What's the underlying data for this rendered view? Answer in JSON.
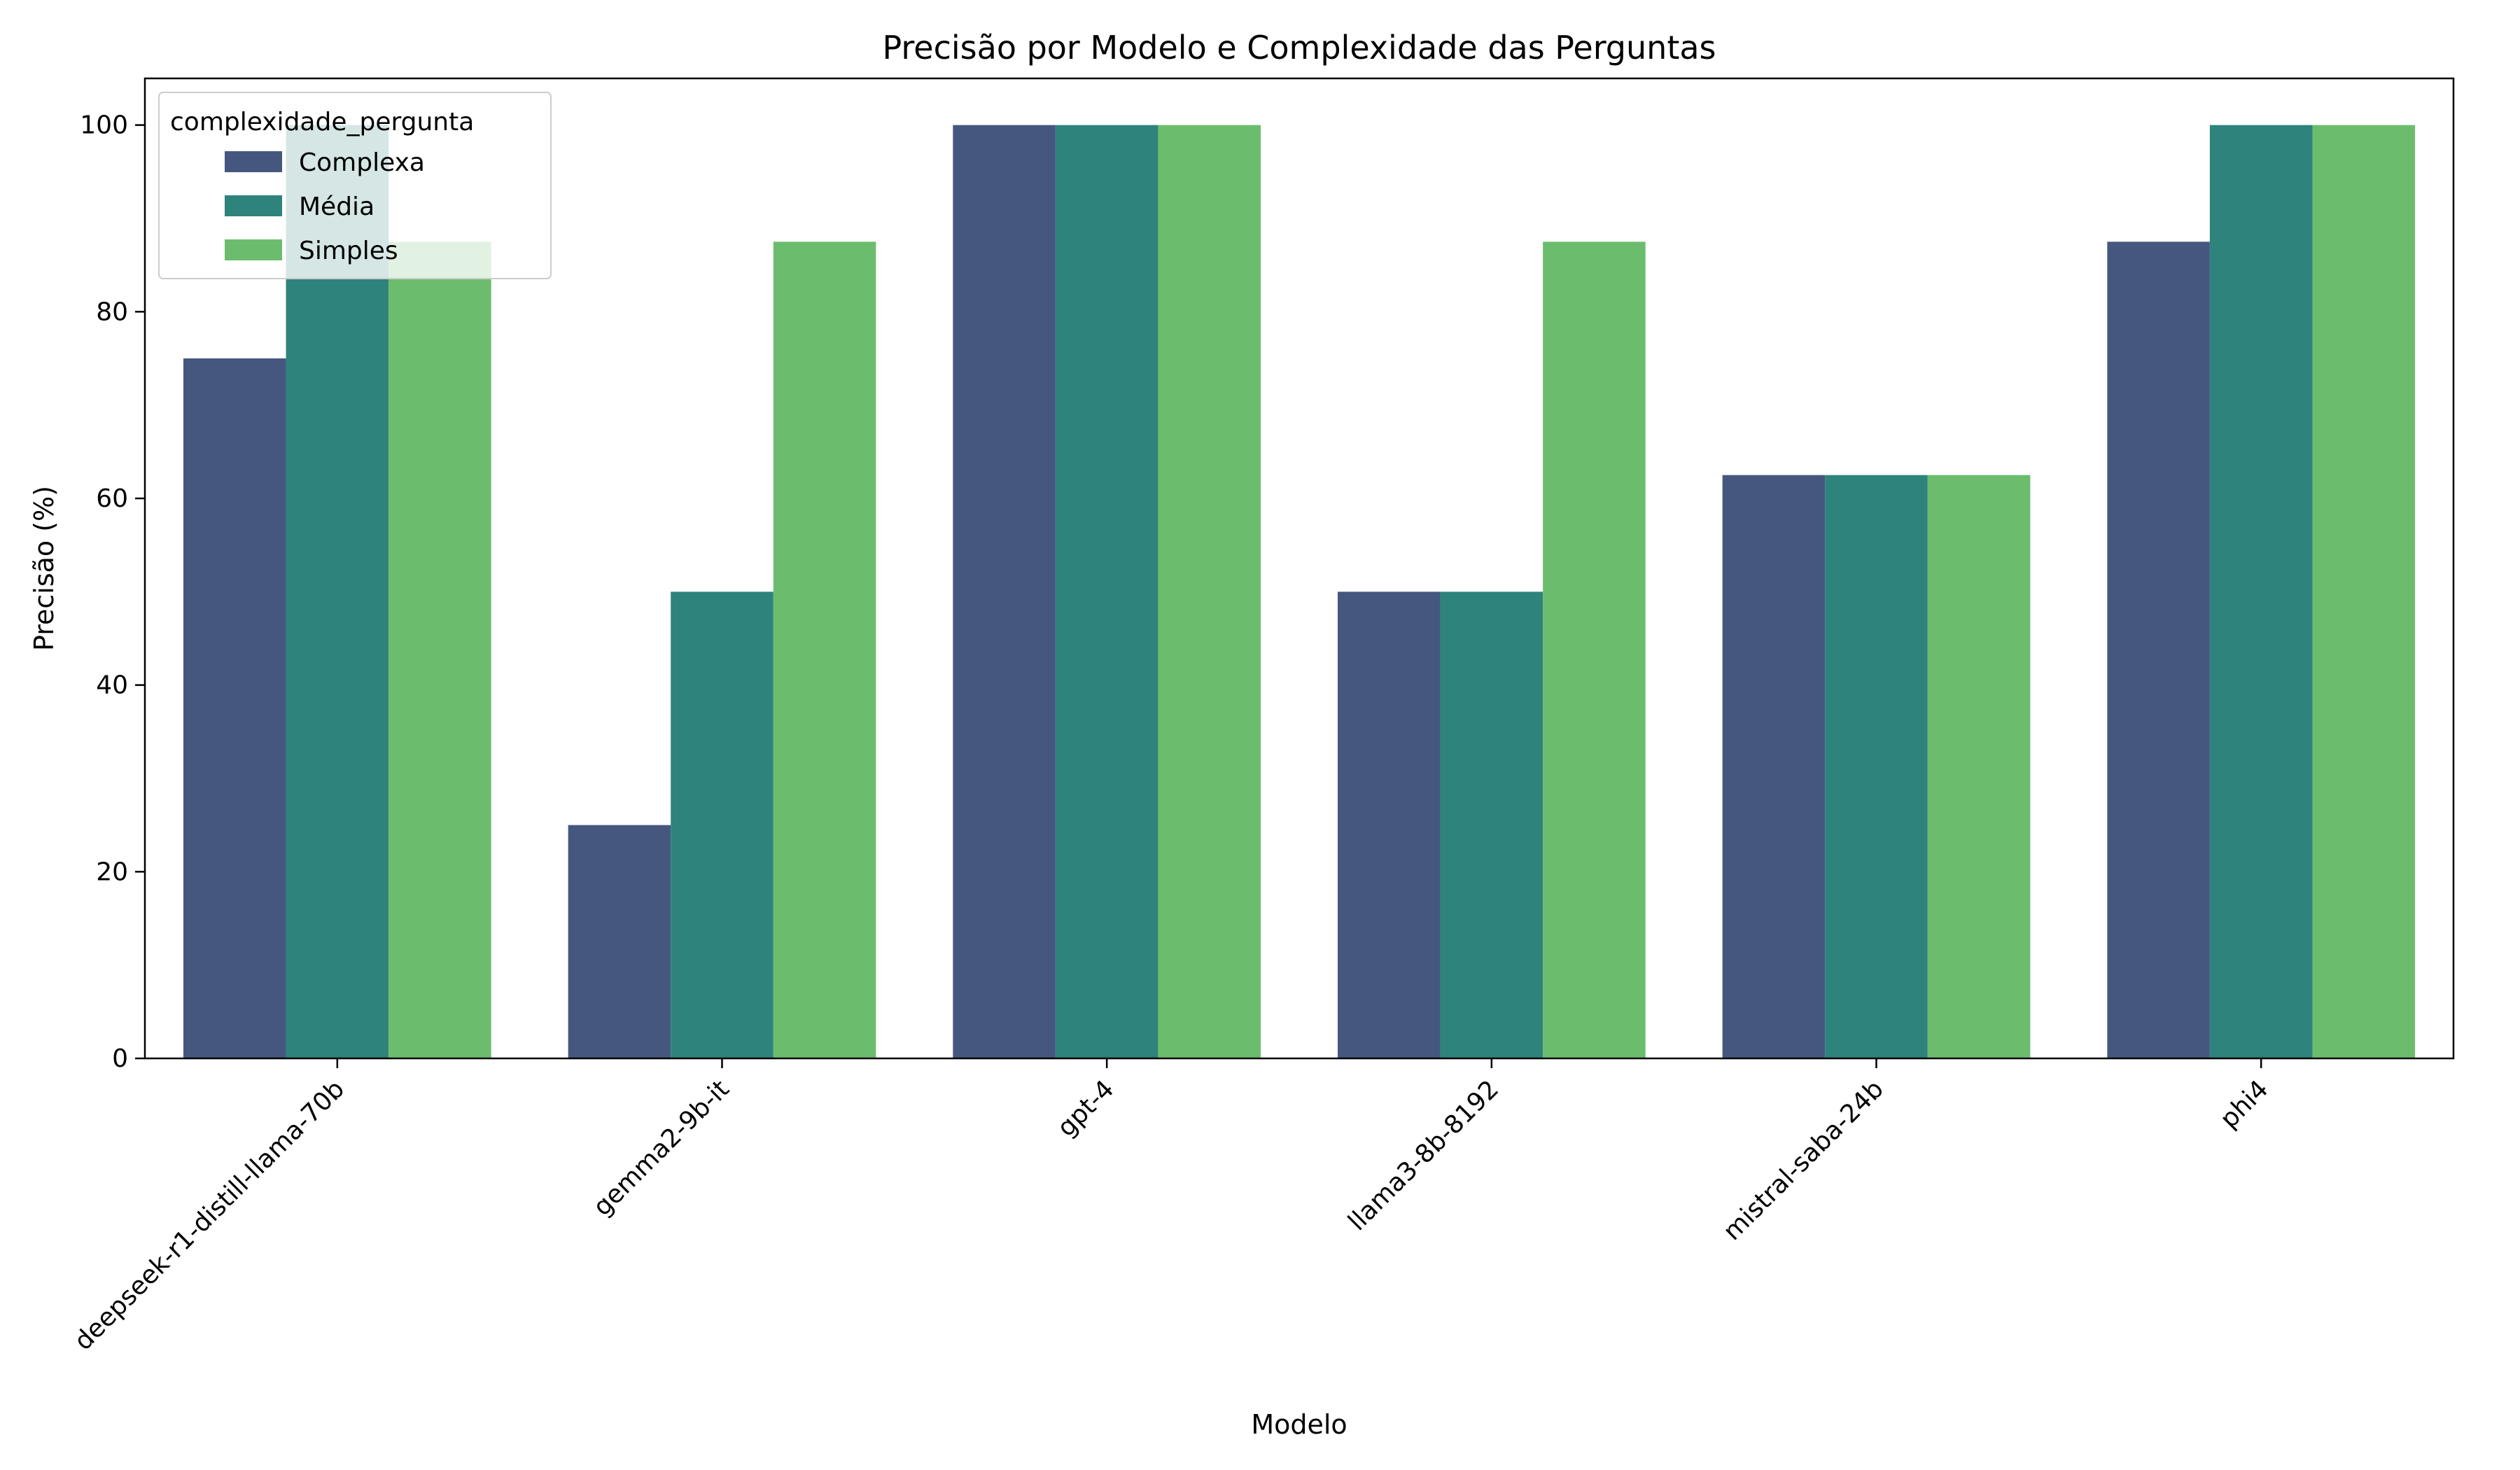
{
  "chart_data": {
    "type": "bar",
    "title": "Precisão por Modelo e Complexidade das Perguntas",
    "xlabel": "Modelo",
    "ylabel": "Precisão (%)",
    "ylim": [
      0,
      105
    ],
    "yticks": [
      0,
      20,
      40,
      60,
      80,
      100
    ],
    "grid": false,
    "legend": {
      "title": "complexidade_pergunta",
      "placement": "top-left"
    },
    "categories": [
      "deepseek-r1-distill-llama-70b",
      "gemma2-9b-it",
      "gpt-4",
      "llama3-8b-8192",
      "mistral-saba-24b",
      "phi4"
    ],
    "series": [
      {
        "name": "Complexa",
        "color": "#46577f",
        "values": [
          75,
          25,
          100,
          50,
          62.5,
          87.5
        ]
      },
      {
        "name": "Média",
        "color": "#2e837c",
        "values": [
          100,
          50,
          100,
          50,
          62.5,
          100
        ]
      },
      {
        "name": "Simples",
        "color": "#6bbd6d",
        "values": [
          87.5,
          87.5,
          100,
          87.5,
          62.5,
          100
        ]
      }
    ]
  }
}
